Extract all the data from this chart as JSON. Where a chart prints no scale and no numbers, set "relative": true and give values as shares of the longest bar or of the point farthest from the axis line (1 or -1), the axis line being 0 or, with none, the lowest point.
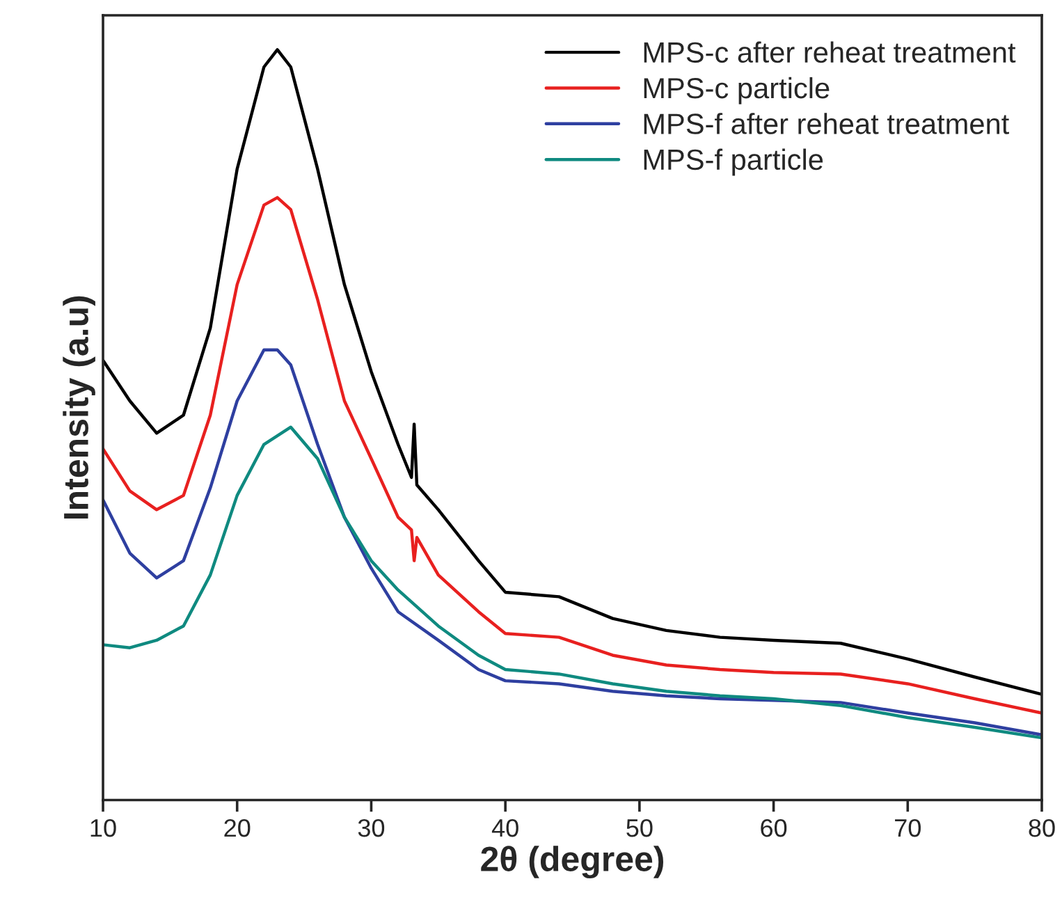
{
  "chart_data": {
    "type": "line",
    "xlabel": "2θ (degree)",
    "ylabel": "Intensity (a.u)",
    "relative": true,
    "xlim": [
      10,
      80
    ],
    "xticks": [
      10,
      20,
      30,
      40,
      50,
      60,
      70,
      80
    ],
    "tick_labels": "x",
    "legend": "top right",
    "grid": false,
    "series": [
      {
        "name": "MPS-c after reheat treatment",
        "color": "#000000",
        "x": [
          10,
          12,
          14,
          16,
          18,
          20,
          22,
          23,
          24,
          26,
          28,
          30,
          32,
          33,
          33.2,
          33.4,
          35,
          38,
          40,
          44,
          48,
          52,
          56,
          60,
          65,
          70,
          75,
          80
        ],
        "values": [
          0.586,
          0.532,
          0.489,
          0.513,
          0.629,
          0.841,
          0.977,
          1.0,
          0.977,
          0.841,
          0.687,
          0.571,
          0.474,
          0.43,
          0.501,
          0.42,
          0.387,
          0.319,
          0.277,
          0.271,
          0.242,
          0.226,
          0.217,
          0.213,
          0.209,
          0.188,
          0.164,
          0.141
        ]
      },
      {
        "name": "MPS-c particle",
        "color": "#e8201f",
        "x": [
          10,
          12,
          14,
          16,
          18,
          20,
          22,
          23,
          24,
          26,
          28,
          30,
          32,
          33,
          33.2,
          33.4,
          35,
          38,
          40,
          44,
          48,
          52,
          56,
          60,
          65,
          70,
          75,
          80
        ],
        "values": [
          0.468,
          0.412,
          0.387,
          0.406,
          0.513,
          0.687,
          0.793,
          0.803,
          0.787,
          0.667,
          0.532,
          0.455,
          0.377,
          0.36,
          0.319,
          0.35,
          0.3,
          0.251,
          0.222,
          0.217,
          0.193,
          0.18,
          0.174,
          0.17,
          0.168,
          0.155,
          0.135,
          0.116
        ]
      },
      {
        "name": "MPS-f after reheat treatment",
        "color": "#2e3fa0",
        "x": [
          10,
          12,
          14,
          16,
          18,
          20,
          22,
          23,
          24,
          26,
          28,
          30,
          32,
          35,
          38,
          40,
          44,
          48,
          52,
          56,
          60,
          65,
          70,
          75,
          80
        ],
        "values": [
          0.4,
          0.329,
          0.296,
          0.319,
          0.416,
          0.532,
          0.6,
          0.6,
          0.58,
          0.474,
          0.377,
          0.309,
          0.251,
          0.213,
          0.174,
          0.159,
          0.155,
          0.145,
          0.139,
          0.135,
          0.133,
          0.13,
          0.116,
          0.103,
          0.087
        ]
      },
      {
        "name": "MPS-f particle",
        "color": "#0f8a80",
        "x": [
          10,
          12,
          14,
          16,
          18,
          20,
          22,
          24,
          26,
          28,
          30,
          32,
          35,
          38,
          40,
          44,
          48,
          52,
          56,
          60,
          65,
          70,
          75,
          80
        ],
        "values": [
          0.207,
          0.203,
          0.213,
          0.232,
          0.3,
          0.406,
          0.474,
          0.497,
          0.455,
          0.377,
          0.319,
          0.28,
          0.232,
          0.193,
          0.174,
          0.168,
          0.155,
          0.145,
          0.139,
          0.135,
          0.126,
          0.11,
          0.097,
          0.083
        ]
      }
    ]
  }
}
